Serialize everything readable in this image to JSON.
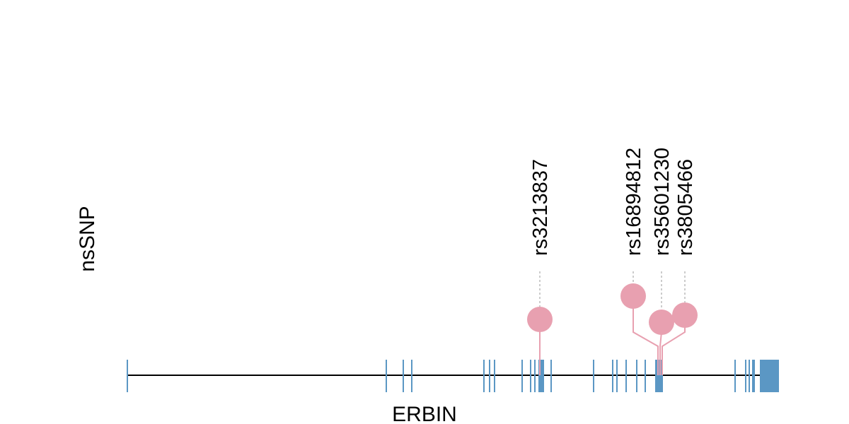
{
  "track_label": "nsSNP",
  "gene": {
    "name": "ERBIN",
    "line_color": "#000000",
    "exon_color": "#5b97c4",
    "exons": [
      {
        "start": 179,
        "end": 181
      },
      {
        "start": 545,
        "end": 547
      },
      {
        "start": 569,
        "end": 571
      },
      {
        "start": 581,
        "end": 583
      },
      {
        "start": 683,
        "end": 685
      },
      {
        "start": 691,
        "end": 693
      },
      {
        "start": 698,
        "end": 700
      },
      {
        "start": 737,
        "end": 739
      },
      {
        "start": 749,
        "end": 751
      },
      {
        "start": 755,
        "end": 757
      },
      {
        "start": 761,
        "end": 769
      },
      {
        "start": 778,
        "end": 780
      },
      {
        "start": 838,
        "end": 840
      },
      {
        "start": 865,
        "end": 867
      },
      {
        "start": 871,
        "end": 873
      },
      {
        "start": 884,
        "end": 886
      },
      {
        "start": 899,
        "end": 901
      },
      {
        "start": 911,
        "end": 913
      },
      {
        "start": 926,
        "end": 937
      },
      {
        "start": 1038,
        "end": 1040
      },
      {
        "start": 1053,
        "end": 1055
      },
      {
        "start": 1058,
        "end": 1060
      },
      {
        "start": 1063,
        "end": 1067
      },
      {
        "start": 1074,
        "end": 1101
      }
    ],
    "range": [
      179,
      1101
    ]
  },
  "snp_color": "#e8a0b0",
  "guide_color": "#bbbbbb",
  "snps": [
    {
      "id": "rs3213837",
      "position": 763,
      "lane": 763
    },
    {
      "id": "rs16894812",
      "position": 930,
      "lane": 895
    },
    {
      "id": "rs35601230",
      "position": 933,
      "lane": 935
    },
    {
      "id": "rs3805466",
      "position": 936,
      "lane": 968
    }
  ]
}
